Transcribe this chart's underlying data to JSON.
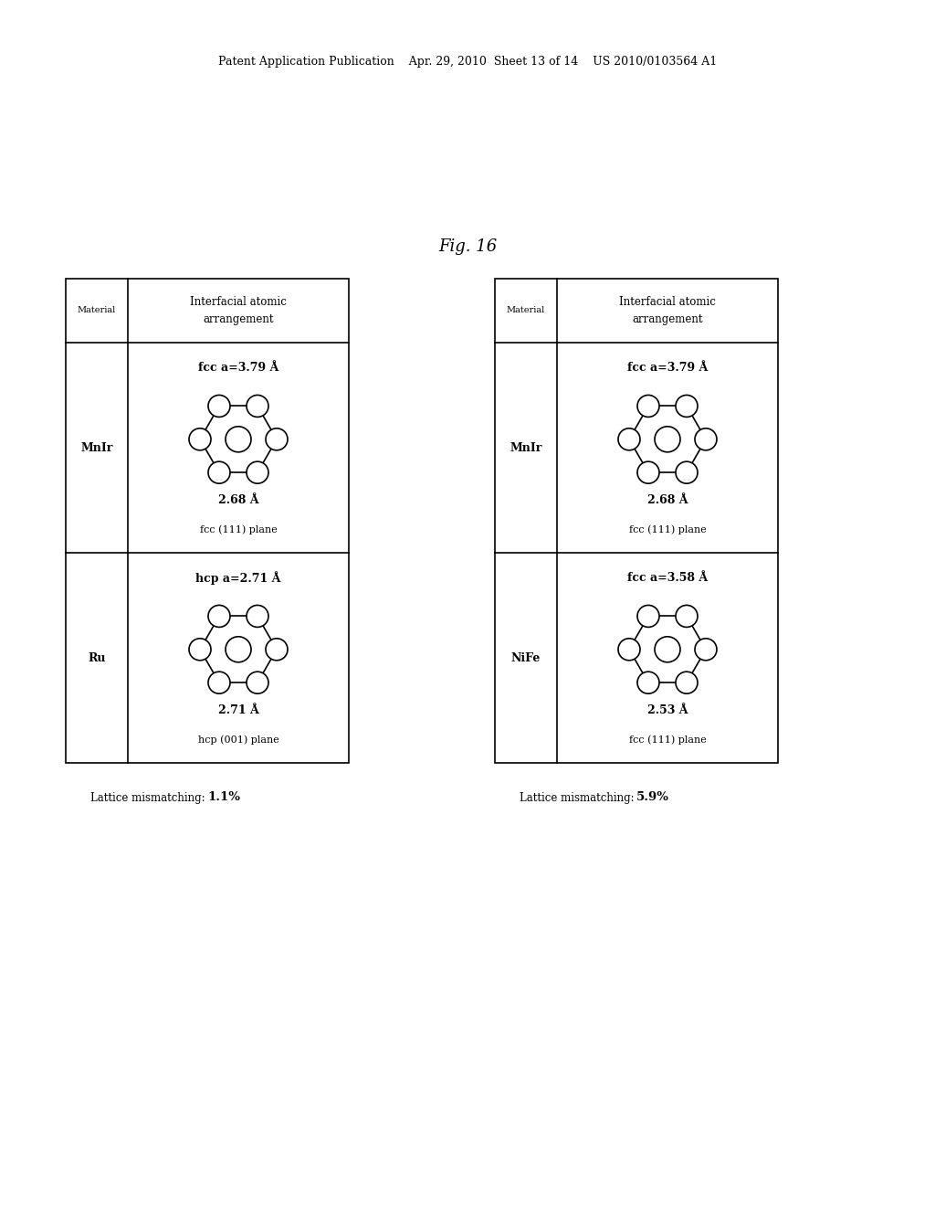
{
  "header_text": "Patent Application Publication    Apr. 29, 2010  Sheet 13 of 14    US 2010/0103564 A1",
  "fig_label": "Fig. 16",
  "background_color": "#ffffff",
  "tables": [
    {
      "id": "left",
      "col1_label": "Material",
      "col2_label": "Interfacial atomic\narrangement",
      "rows": [
        {
          "material": "MnIr",
          "lattice_param": "fcc a=3.79 Å",
          "bond_length": "2.68 Å",
          "plane_label": "fcc (111) plane"
        },
        {
          "material": "Ru",
          "lattice_param": "hcp a=2.71 Å",
          "bond_length": "2.71 Å",
          "plane_label": "hcp (001) plane"
        }
      ],
      "lattice_mismatch_normal": "Lattice mismatching:",
      "lattice_mismatch_bold": "1.1%"
    },
    {
      "id": "right",
      "col1_label": "Material",
      "col2_label": "Interfacial atomic\narrangement",
      "rows": [
        {
          "material": "MnIr",
          "lattice_param": "fcc a=3.79 Å",
          "bond_length": "2.68 Å",
          "plane_label": "fcc (111) plane"
        },
        {
          "material": "NiFe",
          "lattice_param": "fcc a=3.58 Å",
          "bond_length": "2.53 Å",
          "plane_label": "fcc (111) plane"
        }
      ],
      "lattice_mismatch_normal": "Lattice mismatching:",
      "lattice_mismatch_bold": "5.9%"
    }
  ]
}
